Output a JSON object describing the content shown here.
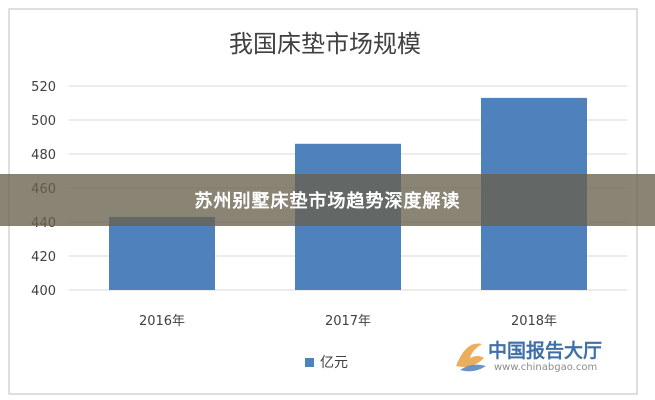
{
  "chart_data": {
    "type": "bar",
    "title": "我国床垫市场规模",
    "categories": [
      "2016年",
      "2017年",
      "2018年"
    ],
    "series": [
      {
        "name": "亿元",
        "values": [
          443,
          486,
          513
        ]
      }
    ],
    "ylim": [
      400,
      520
    ],
    "yticks": [
      400,
      420,
      440,
      460,
      480,
      500,
      520
    ],
    "grid": true,
    "legend": "bottom",
    "colors": {
      "bar": "#4f81bd",
      "grid": "#d9d9d9",
      "border": "#bfbfbf",
      "text": "#404040"
    }
  },
  "banner": {
    "text": "苏州别墅床垫市场趋势深度解读"
  },
  "watermark": {
    "name": "中国报告大厅",
    "url": "www.chinabgao.com",
    "icon": "chinabgao-logo-icon"
  }
}
